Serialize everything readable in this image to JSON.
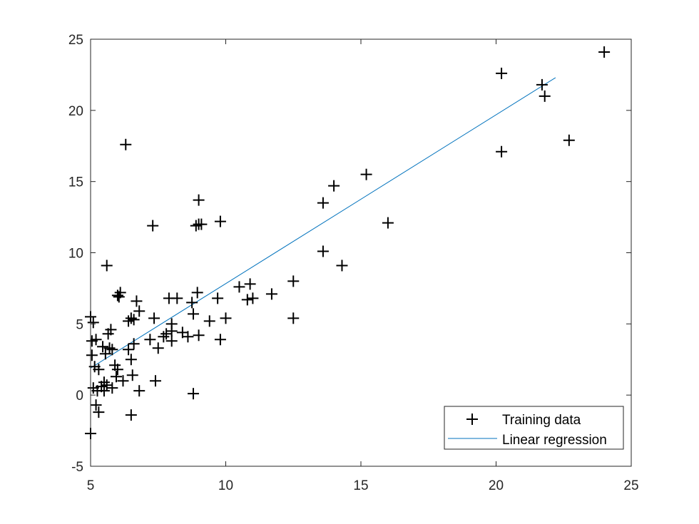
{
  "chart_data": {
    "type": "scatter",
    "title": "",
    "xlabel": "",
    "ylabel": "",
    "xlim": [
      5,
      25
    ],
    "ylim": [
      -5,
      25
    ],
    "xticks": [
      5,
      10,
      15,
      20,
      25
    ],
    "yticks": [
      -5,
      0,
      5,
      10,
      15,
      20,
      25
    ],
    "grid": false,
    "legend_position": "bottom-right",
    "series": [
      {
        "name": "Training data",
        "kind": "scatter",
        "marker": "plus",
        "color": "#000000",
        "points": [
          [
            5.0,
            -2.7
          ],
          [
            5.0,
            5.5
          ],
          [
            5.05,
            3.8
          ],
          [
            5.05,
            2.8
          ],
          [
            5.1,
            5.1
          ],
          [
            5.1,
            0.5
          ],
          [
            5.15,
            2.0
          ],
          [
            5.2,
            -0.7
          ],
          [
            5.2,
            3.9
          ],
          [
            5.25,
            0.3
          ],
          [
            5.3,
            -1.2
          ],
          [
            5.3,
            1.8
          ],
          [
            5.4,
            0.6
          ],
          [
            5.45,
            3.4
          ],
          [
            5.5,
            0.9
          ],
          [
            5.5,
            0.3
          ],
          [
            5.55,
            2.9
          ],
          [
            5.6,
            9.1
          ],
          [
            5.6,
            0.7
          ],
          [
            5.65,
            4.3
          ],
          [
            5.7,
            3.3
          ],
          [
            5.75,
            4.6
          ],
          [
            5.8,
            3.2
          ],
          [
            5.8,
            0.5
          ],
          [
            5.9,
            2.1
          ],
          [
            5.95,
            1.3
          ],
          [
            6.0,
            7.0
          ],
          [
            6.0,
            1.8
          ],
          [
            6.05,
            6.9
          ],
          [
            6.1,
            7.2
          ],
          [
            6.2,
            1.0
          ],
          [
            6.3,
            17.6
          ],
          [
            6.4,
            3.2
          ],
          [
            6.4,
            5.2
          ],
          [
            6.5,
            5.4
          ],
          [
            6.5,
            2.5
          ],
          [
            6.5,
            -1.4
          ],
          [
            6.55,
            1.4
          ],
          [
            6.6,
            5.3
          ],
          [
            6.6,
            3.6
          ],
          [
            6.7,
            6.6
          ],
          [
            6.8,
            5.9
          ],
          [
            6.8,
            0.3
          ],
          [
            7.2,
            3.9
          ],
          [
            7.3,
            11.9
          ],
          [
            7.35,
            5.4
          ],
          [
            7.4,
            1.0
          ],
          [
            7.5,
            3.3
          ],
          [
            7.7,
            4.1
          ],
          [
            7.8,
            4.3
          ],
          [
            7.9,
            6.8
          ],
          [
            8.0,
            3.8
          ],
          [
            8.0,
            4.5
          ],
          [
            8.0,
            5.0
          ],
          [
            8.2,
            6.8
          ],
          [
            8.4,
            4.4
          ],
          [
            8.6,
            4.1
          ],
          [
            8.75,
            6.5
          ],
          [
            8.8,
            5.7
          ],
          [
            8.8,
            0.1
          ],
          [
            8.9,
            11.9
          ],
          [
            8.95,
            7.2
          ],
          [
            9.0,
            4.2
          ],
          [
            9.0,
            12.0
          ],
          [
            9.0,
            13.7
          ],
          [
            9.1,
            12.0
          ],
          [
            9.4,
            5.2
          ],
          [
            9.7,
            6.8
          ],
          [
            9.8,
            12.2
          ],
          [
            9.8,
            3.9
          ],
          [
            10.0,
            5.4
          ],
          [
            10.5,
            7.6
          ],
          [
            10.8,
            6.7
          ],
          [
            10.9,
            7.8
          ],
          [
            11.0,
            6.8
          ],
          [
            11.7,
            7.1
          ],
          [
            12.5,
            8.0
          ],
          [
            12.5,
            5.4
          ],
          [
            13.6,
            13.5
          ],
          [
            13.6,
            10.1
          ],
          [
            14.0,
            14.7
          ],
          [
            14.3,
            9.1
          ],
          [
            15.2,
            15.5
          ],
          [
            16.0,
            12.1
          ],
          [
            20.2,
            22.6
          ],
          [
            20.2,
            17.1
          ],
          [
            21.7,
            21.8
          ],
          [
            21.8,
            21.0
          ],
          [
            22.7,
            17.9
          ],
          [
            24.0,
            24.1
          ]
        ]
      },
      {
        "name": "Linear regression",
        "kind": "line",
        "color": "#0072BD",
        "points": [
          [
            5.0,
            1.9
          ],
          [
            22.2,
            22.3
          ]
        ]
      }
    ]
  }
}
